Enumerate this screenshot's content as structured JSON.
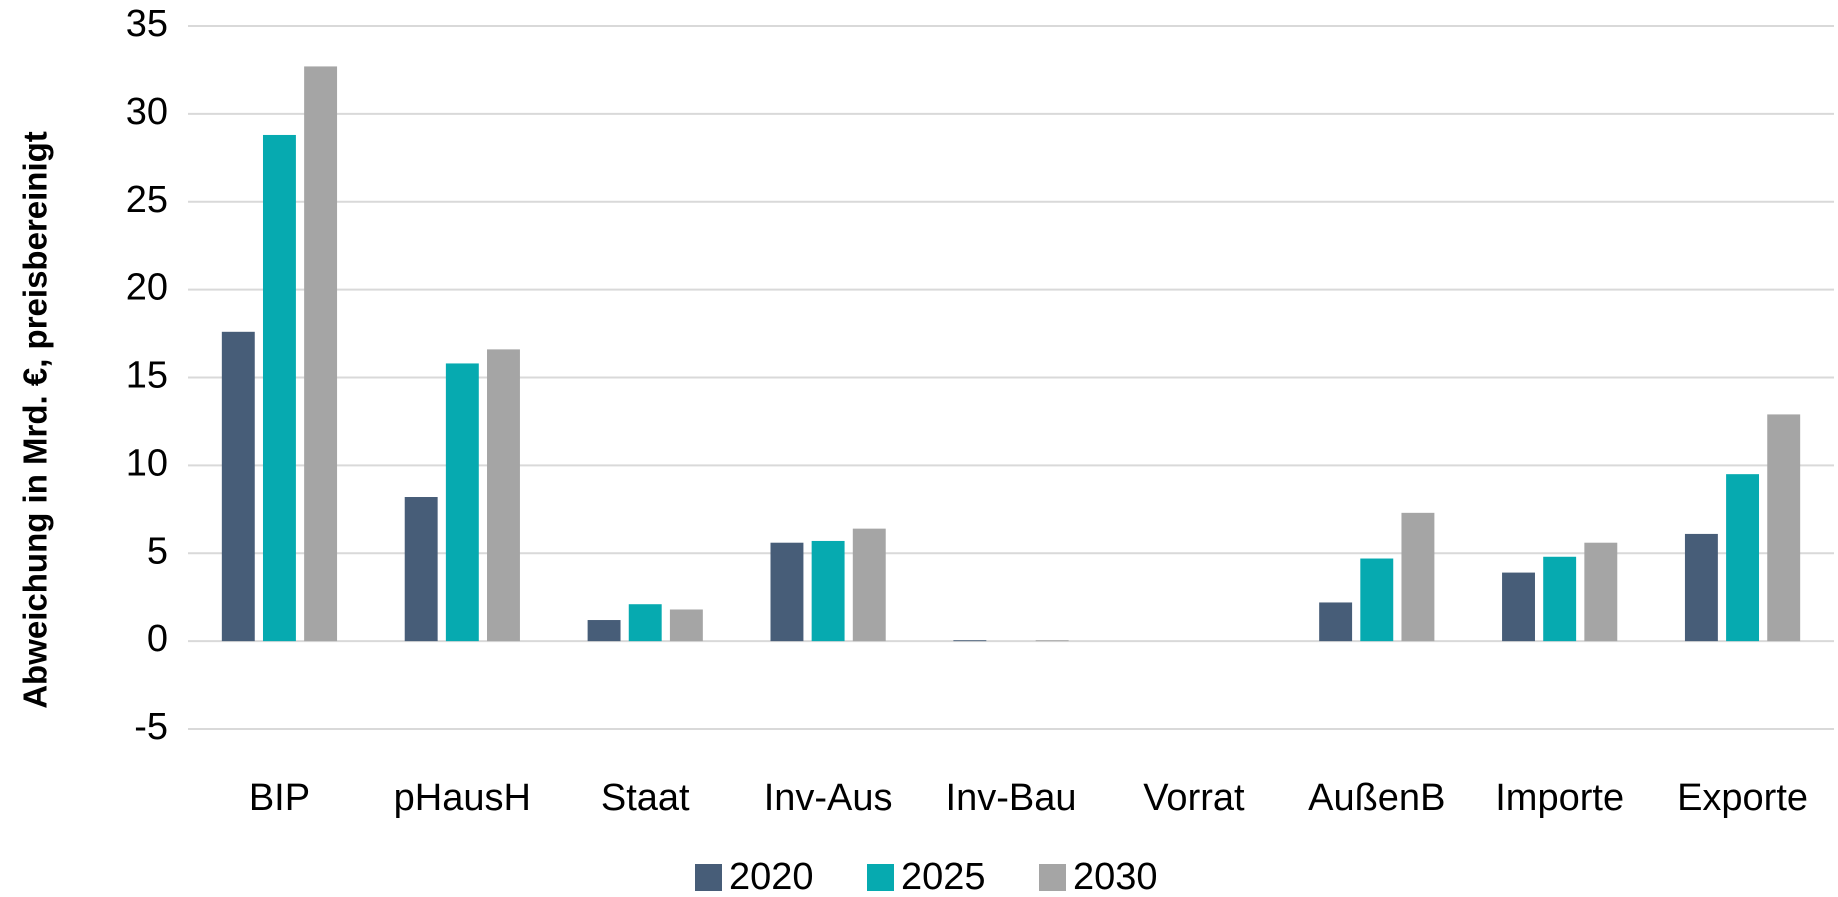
{
  "chart_data": {
    "type": "bar",
    "y_label": "Abweichung in Mrd. €, preisbereinigt",
    "categories": [
      "BIP",
      "pHausH",
      "Staat",
      "Inv-Aus",
      "Inv-Bau",
      "Vorrat",
      "AußenB",
      "Importe",
      "Exporte"
    ],
    "series": [
      {
        "name": "2020",
        "color": "#475d78",
        "values": [
          17.6,
          8.2,
          1.2,
          5.6,
          0.05,
          0,
          2.2,
          3.9,
          6.1
        ]
      },
      {
        "name": "2025",
        "color": "#06aab0",
        "values": [
          28.8,
          15.8,
          2.1,
          5.7,
          0,
          0,
          4.7,
          4.8,
          9.5
        ]
      },
      {
        "name": "2030",
        "color": "#a5a5a5",
        "values": [
          32.7,
          16.6,
          1.8,
          6.4,
          0.05,
          0,
          7.3,
          5.6,
          12.9
        ]
      }
    ],
    "ylim": [
      -5,
      35
    ],
    "yticks": [
      -5,
      0,
      5,
      10,
      15,
      20,
      25,
      30,
      35
    ],
    "grid": true,
    "legend": "bottom"
  }
}
